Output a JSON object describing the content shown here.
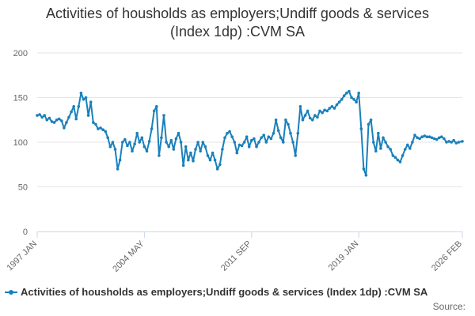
{
  "colors": {
    "series": "#1a80bb",
    "grid": "#e6e6e6",
    "axis": "#ccd6eb",
    "text": "#333333",
    "muted": "#666666"
  },
  "source_label": "Source:",
  "chart_data": {
    "type": "line",
    "title_lines": [
      "Activities of housholds as employers;Undiff goods & services",
      "(Index 1dp) :CVM SA"
    ],
    "xlabel": "",
    "ylabel": "",
    "ylim": [
      0,
      200
    ],
    "yticks": [
      0,
      50,
      100,
      150,
      200
    ],
    "xlim": [
      "1997-01",
      "2026-02"
    ],
    "xticks": [
      {
        "date": "1997-01",
        "label": "1997 JAN"
      },
      {
        "date": "2004-05",
        "label": "2004 MAY"
      },
      {
        "date": "2011-09",
        "label": "2011 SEP"
      },
      {
        "date": "2019-01",
        "label": "2019 JAN"
      },
      {
        "date": "2026-02",
        "label": "2026 FEB"
      }
    ],
    "grid": true,
    "legend_position": "bottom",
    "series": [
      {
        "name": "Activities of housholds as employers;Undiff goods & services (Index 1dp) :CVM SA",
        "points": [
          [
            "1997-01",
            130
          ],
          [
            "1997-03",
            131
          ],
          [
            "1997-05",
            128
          ],
          [
            "1997-07",
            130
          ],
          [
            "1997-09",
            125
          ],
          [
            "1997-11",
            127
          ],
          [
            "1998-01",
            123
          ],
          [
            "1998-03",
            122
          ],
          [
            "1998-05",
            125
          ],
          [
            "1998-07",
            126
          ],
          [
            "1998-09",
            124
          ],
          [
            "1998-11",
            116
          ],
          [
            "1999-01",
            122
          ],
          [
            "1999-03",
            128
          ],
          [
            "1999-05",
            134
          ],
          [
            "1999-07",
            140
          ],
          [
            "1999-09",
            126
          ],
          [
            "1999-11",
            140
          ],
          [
            "2000-01",
            155
          ],
          [
            "2000-03",
            148
          ],
          [
            "2000-05",
            150
          ],
          [
            "2000-07",
            130
          ],
          [
            "2000-09",
            145
          ],
          [
            "2000-11",
            122
          ],
          [
            "2001-01",
            120
          ],
          [
            "2001-03",
            115
          ],
          [
            "2001-05",
            116
          ],
          [
            "2001-07",
            114
          ],
          [
            "2001-09",
            112
          ],
          [
            "2001-11",
            105
          ],
          [
            "2002-01",
            95
          ],
          [
            "2002-03",
            100
          ],
          [
            "2002-05",
            92
          ],
          [
            "2002-07",
            70
          ],
          [
            "2002-09",
            80
          ],
          [
            "2002-11",
            100
          ],
          [
            "2003-01",
            103
          ],
          [
            "2003-03",
            96
          ],
          [
            "2003-05",
            100
          ],
          [
            "2003-07",
            90
          ],
          [
            "2003-09",
            98
          ],
          [
            "2003-11",
            110
          ],
          [
            "2004-01",
            100
          ],
          [
            "2004-03",
            105
          ],
          [
            "2004-05",
            95
          ],
          [
            "2004-07",
            90
          ],
          [
            "2004-09",
            101
          ],
          [
            "2004-11",
            115
          ],
          [
            "2005-01",
            135
          ],
          [
            "2005-03",
            140
          ],
          [
            "2005-05",
            85
          ],
          [
            "2005-07",
            105
          ],
          [
            "2005-09",
            130
          ],
          [
            "2005-11",
            100
          ],
          [
            "2006-01",
            95
          ],
          [
            "2006-03",
            102
          ],
          [
            "2006-05",
            92
          ],
          [
            "2006-07",
            104
          ],
          [
            "2006-09",
            110
          ],
          [
            "2006-11",
            100
          ],
          [
            "2007-01",
            74
          ],
          [
            "2007-03",
            95
          ],
          [
            "2007-05",
            80
          ],
          [
            "2007-07",
            88
          ],
          [
            "2007-09",
            79
          ],
          [
            "2007-11",
            92
          ],
          [
            "2008-01",
            100
          ],
          [
            "2008-03",
            90
          ],
          [
            "2008-05",
            100
          ],
          [
            "2008-07",
            95
          ],
          [
            "2008-09",
            85
          ],
          [
            "2008-11",
            80
          ],
          [
            "2009-01",
            88
          ],
          [
            "2009-03",
            80
          ],
          [
            "2009-05",
            70
          ],
          [
            "2009-07",
            75
          ],
          [
            "2009-09",
            92
          ],
          [
            "2009-11",
            105
          ],
          [
            "2010-01",
            110
          ],
          [
            "2010-03",
            112
          ],
          [
            "2010-05",
            106
          ],
          [
            "2010-07",
            100
          ],
          [
            "2010-09",
            88
          ],
          [
            "2010-11",
            97
          ],
          [
            "2011-01",
            96
          ],
          [
            "2011-03",
            100
          ],
          [
            "2011-05",
            106
          ],
          [
            "2011-07",
            95
          ],
          [
            "2011-09",
            102
          ],
          [
            "2011-11",
            104
          ],
          [
            "2012-01",
            95
          ],
          [
            "2012-03",
            100
          ],
          [
            "2012-05",
            105
          ],
          [
            "2012-07",
            108
          ],
          [
            "2012-09",
            100
          ],
          [
            "2012-11",
            106
          ],
          [
            "2013-01",
            104
          ],
          [
            "2013-03",
            110
          ],
          [
            "2013-05",
            125
          ],
          [
            "2013-07",
            113
          ],
          [
            "2013-09",
            105
          ],
          [
            "2013-11",
            100
          ],
          [
            "2014-01",
            125
          ],
          [
            "2014-03",
            120
          ],
          [
            "2014-05",
            110
          ],
          [
            "2014-07",
            100
          ],
          [
            "2014-09",
            85
          ],
          [
            "2014-11",
            110
          ],
          [
            "2015-01",
            140
          ],
          [
            "2015-03",
            125
          ],
          [
            "2015-05",
            130
          ],
          [
            "2015-07",
            135
          ],
          [
            "2015-09",
            127
          ],
          [
            "2015-11",
            125
          ],
          [
            "2016-01",
            130
          ],
          [
            "2016-03",
            128
          ],
          [
            "2016-05",
            135
          ],
          [
            "2016-07",
            133
          ],
          [
            "2016-09",
            136
          ],
          [
            "2016-11",
            135
          ],
          [
            "2017-01",
            138
          ],
          [
            "2017-03",
            140
          ],
          [
            "2017-05",
            138
          ],
          [
            "2017-07",
            142
          ],
          [
            "2017-09",
            145
          ],
          [
            "2017-11",
            148
          ],
          [
            "2018-01",
            152
          ],
          [
            "2018-03",
            155
          ],
          [
            "2018-05",
            157
          ],
          [
            "2018-07",
            150
          ],
          [
            "2018-09",
            148
          ],
          [
            "2018-11",
            145
          ],
          [
            "2019-01",
            155
          ],
          [
            "2019-03",
            115
          ],
          [
            "2019-05",
            70
          ],
          [
            "2019-07",
            63
          ],
          [
            "2019-09",
            120
          ],
          [
            "2019-11",
            125
          ],
          [
            "2020-01",
            100
          ],
          [
            "2020-03",
            90
          ],
          [
            "2020-05",
            110
          ],
          [
            "2020-07",
            93
          ],
          [
            "2020-09",
            105
          ],
          [
            "2020-11",
            100
          ],
          [
            "2021-01",
            95
          ],
          [
            "2021-03",
            92
          ],
          [
            "2021-05",
            85
          ],
          [
            "2021-07",
            83
          ],
          [
            "2021-09",
            80
          ],
          [
            "2021-11",
            78
          ],
          [
            "2022-01",
            85
          ],
          [
            "2022-03",
            92
          ],
          [
            "2022-05",
            97
          ],
          [
            "2022-07",
            93
          ],
          [
            "2022-09",
            100
          ],
          [
            "2022-11",
            108
          ],
          [
            "2023-01",
            105
          ],
          [
            "2023-03",
            104
          ],
          [
            "2023-05",
            106
          ],
          [
            "2023-07",
            107
          ],
          [
            "2023-09",
            106
          ],
          [
            "2023-11",
            106
          ],
          [
            "2024-01",
            105
          ],
          [
            "2024-03",
            104
          ],
          [
            "2024-05",
            103
          ],
          [
            "2024-07",
            105
          ],
          [
            "2024-09",
            106
          ],
          [
            "2024-11",
            104
          ],
          [
            "2025-01",
            100
          ],
          [
            "2025-03",
            101
          ],
          [
            "2025-05",
            100
          ],
          [
            "2025-07",
            102
          ],
          [
            "2025-09",
            99
          ],
          [
            "2025-11",
            100
          ],
          [
            "2026-02",
            101
          ]
        ]
      }
    ]
  }
}
